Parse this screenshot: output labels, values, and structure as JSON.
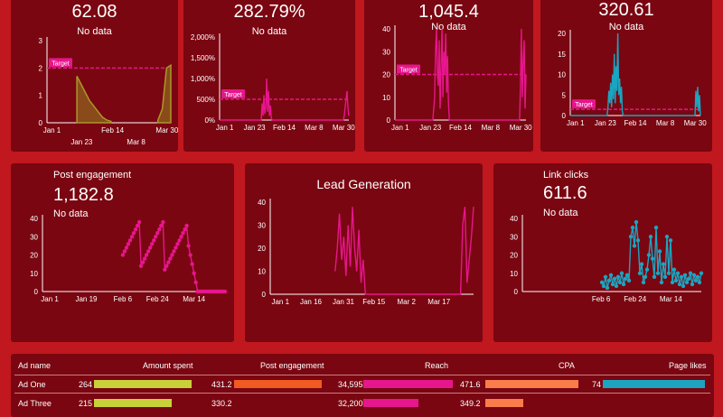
{
  "colors": {
    "page_bg": "#c0181e",
    "card_bg": "#7a0611",
    "olive": "#a89a2a",
    "pink": "#e6168c",
    "teal": "#1ba5c0",
    "target": "#e6168c"
  },
  "top_cards": [
    {
      "kpi": "62.08",
      "nodata": "No data",
      "target_label": "Target",
      "chart_data": {
        "type": "area",
        "color": "olive",
        "yticks": [
          "0",
          "1",
          "2",
          "3"
        ],
        "ylim": [
          0,
          3
        ],
        "target": 2,
        "xticks": [
          {
            "label": "Jan 1",
            "t": 0.04
          },
          {
            "label": "Feb 14",
            "t": 0.53
          },
          {
            "label": "Mar 30",
            "t": 0.97
          }
        ],
        "xticks2": [
          {
            "label": "Jan 23",
            "t": 0.28
          },
          {
            "label": "Mar 8",
            "t": 0.72
          }
        ],
        "values": [
          null,
          null,
          null,
          null,
          null,
          null,
          null,
          1.7,
          1.4,
          1.1,
          0.8,
          0.6,
          0.4,
          0.2,
          0.1,
          0.05,
          null,
          null,
          null,
          null,
          null,
          null,
          null,
          null,
          null,
          null,
          0.1,
          0.5,
          2.0,
          2.1
        ]
      }
    },
    {
      "kpi": "282.79%",
      "nodata": "No data",
      "target_label": "Target",
      "chart_data": {
        "type": "line",
        "color": "pink",
        "yticks": [
          "0%",
          "500%",
          "1,000%",
          "1,500%",
          "2,000%"
        ],
        "ylim": [
          0,
          2000
        ],
        "target": 500,
        "xticks": [
          {
            "label": "Jan 1",
            "t": 0.04
          },
          {
            "label": "Jan 23",
            "t": 0.27
          },
          {
            "label": "Feb 14",
            "t": 0.5
          },
          {
            "label": "Mar 8",
            "t": 0.73
          },
          {
            "label": "Mar 30",
            "t": 0.96
          }
        ],
        "values": [
          0,
          0,
          0,
          0,
          0,
          0,
          0,
          0,
          0,
          0,
          0,
          0,
          0,
          0,
          0,
          0,
          0,
          0,
          0,
          0,
          0,
          0,
          0,
          0,
          0,
          0,
          0,
          0,
          0,
          0,
          0,
          0,
          0,
          0,
          0,
          0,
          0,
          0,
          0,
          0,
          0,
          0,
          0,
          0,
          0,
          0,
          400,
          100,
          600,
          150,
          300,
          1000,
          200,
          700,
          100,
          350,
          50,
          0,
          0,
          0,
          0,
          0,
          0,
          0,
          0,
          0,
          0,
          0,
          0,
          0,
          0,
          0,
          0,
          0,
          0,
          0,
          0,
          0,
          0,
          0,
          0,
          0,
          0,
          0,
          0,
          0,
          0,
          0,
          0,
          0,
          0,
          0,
          0,
          0,
          0,
          0,
          0,
          0,
          0,
          0,
          0,
          0,
          0,
          0,
          0,
          0,
          0,
          0,
          0,
          0,
          0,
          0,
          0,
          0,
          0,
          0,
          0,
          0,
          0,
          0,
          0,
          0,
          0,
          0,
          0,
          0,
          0,
          0,
          0,
          0,
          0,
          0,
          0,
          0,
          0,
          100,
          300,
          500,
          700,
          300,
          100
        ]
      }
    },
    {
      "kpi": "1,045.4",
      "nodata": "No data",
      "target_label": "Target",
      "chart_data": {
        "type": "line",
        "color": "pink",
        "yticks": [
          "0",
          "10",
          "20",
          "30",
          "40"
        ],
        "ylim": [
          0,
          40
        ],
        "target": 20,
        "xticks": [
          {
            "label": "Jan 1",
            "t": 0.04
          },
          {
            "label": "Jan 23",
            "t": 0.27
          },
          {
            "label": "Feb 14",
            "t": 0.5
          },
          {
            "label": "Mar 8",
            "t": 0.73
          },
          {
            "label": "Mar 30",
            "t": 0.96
          }
        ],
        "values": [
          0,
          0,
          0,
          0,
          0,
          0,
          0,
          0,
          0,
          0,
          0,
          0,
          0,
          0,
          0,
          0,
          0,
          0,
          0,
          0,
          0,
          0,
          0,
          0,
          0,
          0,
          0,
          0,
          0,
          0,
          0,
          0,
          0,
          0,
          0,
          0,
          0,
          0,
          0,
          0,
          0,
          0,
          5,
          10,
          30,
          40,
          20,
          15,
          35,
          5,
          25,
          40,
          10,
          30,
          20,
          38,
          12,
          28,
          8,
          0,
          0,
          0,
          0,
          0,
          0,
          0,
          0,
          0,
          0,
          0,
          0,
          0,
          0,
          0,
          0,
          0,
          0,
          0,
          0,
          0,
          0,
          0,
          0,
          0,
          0,
          0,
          0,
          0,
          0,
          0,
          0,
          0,
          0,
          0,
          0,
          0,
          0,
          0,
          0,
          0,
          0,
          0,
          0,
          0,
          0,
          0,
          0,
          0,
          0,
          0,
          0,
          0,
          0,
          0,
          0,
          0,
          0,
          0,
          0,
          0,
          0,
          0,
          0,
          0,
          0,
          0,
          0,
          0,
          0,
          0,
          0,
          0,
          0,
          0,
          0,
          0,
          15,
          40,
          10,
          25,
          35,
          5,
          20
        ]
      }
    },
    {
      "kpi": "320.61",
      "nodata": "No data",
      "target_label": "Target",
      "chart_data": {
        "type": "line",
        "color": "teal",
        "yticks": [
          "0",
          "5",
          "10",
          "15",
          "20"
        ],
        "ylim": [
          0,
          20
        ],
        "target": 1.5,
        "xticks": [
          {
            "label": "Jan 1",
            "t": 0.04
          },
          {
            "label": "Jan 23",
            "t": 0.27
          },
          {
            "label": "Feb 14",
            "t": 0.5
          },
          {
            "label": "Mar 8",
            "t": 0.73
          },
          {
            "label": "Mar 30",
            "t": 0.96
          }
        ],
        "values": [
          0,
          0,
          0,
          0,
          0,
          0,
          0,
          0,
          0,
          0,
          0,
          0,
          0,
          0,
          0,
          0,
          0,
          0,
          0,
          0,
          0,
          0,
          0,
          0,
          0,
          0,
          0,
          0,
          0,
          0,
          0,
          0,
          0,
          0,
          0,
          0,
          0,
          0,
          0,
          0,
          0,
          0,
          2,
          6,
          3,
          8,
          2,
          10,
          4,
          15,
          3,
          12,
          6,
          20,
          5,
          9,
          3,
          7,
          1,
          0,
          0,
          0,
          0,
          0,
          0,
          0,
          0,
          0,
          0,
          0,
          0,
          0,
          0,
          0,
          0,
          0,
          0,
          0,
          0,
          0,
          0,
          0,
          0,
          0,
          0,
          0,
          0,
          0,
          0,
          0,
          0,
          0,
          0,
          0,
          0,
          0,
          0,
          0,
          0,
          0,
          0,
          0,
          0,
          0,
          0,
          0,
          0,
          0,
          0,
          0,
          0,
          0,
          0,
          0,
          0,
          0,
          0,
          0,
          0,
          0,
          0,
          0,
          0,
          0,
          0,
          0,
          0,
          0,
          0,
          0,
          0,
          0,
          0,
          0,
          0,
          0,
          0,
          0,
          0,
          0,
          6,
          2,
          7,
          1,
          5,
          0
        ]
      }
    }
  ],
  "mid_cards": [
    {
      "title": "Post engagement",
      "kpi": "1,182.8",
      "nodata": "No data",
      "chart_data": {
        "type": "line",
        "color": "pink",
        "markers": true,
        "yticks": [
          "0",
          "10",
          "20",
          "30",
          "40"
        ],
        "ylim": [
          0,
          40
        ],
        "xticks": [
          {
            "label": "Jan 1",
            "t": 0.04
          },
          {
            "label": "Jan 19",
            "t": 0.24
          },
          {
            "label": "Feb 6",
            "t": 0.44
          },
          {
            "label": "Feb 24",
            "t": 0.63
          },
          {
            "label": "Mar 14",
            "t": 0.83
          }
        ],
        "values": [
          null,
          null,
          null,
          null,
          null,
          null,
          null,
          null,
          null,
          null,
          null,
          null,
          null,
          null,
          null,
          null,
          null,
          null,
          null,
          null,
          null,
          null,
          null,
          null,
          null,
          null,
          null,
          null,
          null,
          null,
          null,
          null,
          null,
          null,
          null,
          null,
          null,
          null,
          null,
          null,
          null,
          null,
          null,
          null,
          20,
          22,
          24,
          26,
          28,
          30,
          32,
          34,
          36,
          38,
          14,
          16,
          18,
          20,
          22,
          24,
          26,
          28,
          30,
          32,
          34,
          36,
          38,
          12,
          14,
          16,
          18,
          20,
          22,
          24,
          26,
          28,
          30,
          32,
          34,
          36,
          25,
          20,
          15,
          10,
          5,
          0,
          0,
          0,
          0,
          0,
          0,
          0,
          0,
          0,
          0,
          0,
          0,
          0,
          0,
          0,
          0
        ]
      }
    },
    {
      "title": "Lead Generation",
      "chart_data": {
        "type": "line",
        "color": "pink",
        "yticks": [
          "0",
          "10",
          "20",
          "30",
          "40"
        ],
        "ylim": [
          0,
          40
        ],
        "xticks": [
          {
            "label": "Jan 1",
            "t": 0.05
          },
          {
            "label": "Jan 16",
            "t": 0.2
          },
          {
            "label": "Jan 31",
            "t": 0.36
          },
          {
            "label": "Feb 15",
            "t": 0.51
          },
          {
            "label": "Mar 2",
            "t": 0.67
          },
          {
            "label": "Mar 17",
            "t": 0.83
          }
        ],
        "values": [
          null,
          null,
          null,
          null,
          null,
          null,
          null,
          null,
          null,
          null,
          null,
          null,
          null,
          null,
          null,
          null,
          null,
          null,
          null,
          null,
          null,
          null,
          null,
          null,
          null,
          null,
          null,
          null,
          null,
          null,
          10,
          20,
          35,
          15,
          25,
          8,
          30,
          12,
          38,
          20,
          10,
          28,
          5,
          15,
          0,
          0,
          0,
          0,
          0,
          0,
          0,
          0,
          0,
          0,
          0,
          0,
          0,
          0,
          0,
          0,
          0,
          0,
          0,
          0,
          0,
          0,
          0,
          0,
          0,
          0,
          0,
          0,
          0,
          0,
          0,
          0,
          0,
          0,
          0,
          0,
          0,
          0,
          0,
          0,
          0,
          0,
          0,
          0,
          0,
          30,
          38,
          5,
          15,
          25,
          38
        ]
      }
    },
    {
      "title": "Link clicks",
      "kpi": "611.6",
      "nodata": "No data",
      "chart_data": {
        "type": "line",
        "color": "teal",
        "markers": true,
        "yticks": [
          "0",
          "10",
          "20",
          "30",
          "40"
        ],
        "ylim": [
          0,
          40
        ],
        "xticks": [
          {
            "label": "Feb 6",
            "t": 0.44
          },
          {
            "label": "Feb 24",
            "t": 0.63
          },
          {
            "label": "Mar 14",
            "t": 0.83
          }
        ],
        "values": [
          null,
          null,
          null,
          null,
          null,
          null,
          null,
          null,
          null,
          null,
          null,
          null,
          null,
          null,
          null,
          null,
          null,
          null,
          null,
          null,
          null,
          null,
          null,
          null,
          null,
          null,
          null,
          null,
          null,
          null,
          null,
          null,
          null,
          null,
          null,
          null,
          null,
          null,
          null,
          null,
          null,
          null,
          null,
          null,
          5,
          3,
          8,
          2,
          6,
          9,
          4,
          7,
          3,
          8,
          5,
          10,
          4,
          7,
          9,
          6,
          30,
          35,
          25,
          38,
          28,
          10,
          15,
          5,
          8,
          12,
          20,
          30,
          18,
          8,
          35,
          10,
          22,
          5,
          15,
          8,
          30,
          10,
          28,
          5,
          12,
          6,
          10,
          4,
          8,
          3,
          9,
          5,
          7,
          10,
          4,
          9,
          6,
          8,
          5,
          10
        ]
      }
    }
  ],
  "table": {
    "headers": [
      "Ad name",
      "Amount spent",
      "Post engagement",
      "Reach",
      "CPA",
      "Page likes"
    ],
    "rows": [
      {
        "name": "Ad One",
        "amount": "264",
        "amount_frac": 0.95,
        "engagement": "431.2",
        "engagement_frac": 0.97,
        "reach": "34,595",
        "reach_frac": 0.97,
        "cpa": "471.6",
        "cpa_frac": 0.97,
        "likes": "74",
        "likes_frac": 0.97
      },
      {
        "name": "Ad Three",
        "amount": "215",
        "amount_frac": 0.75,
        "engagement": "330.2",
        "engagement_frac": 0.0,
        "reach": "32,200",
        "reach_frac": 0.6,
        "cpa": "349.2",
        "cpa_frac": 0.4,
        "likes": "",
        "likes_frac": 0.0
      }
    ]
  }
}
